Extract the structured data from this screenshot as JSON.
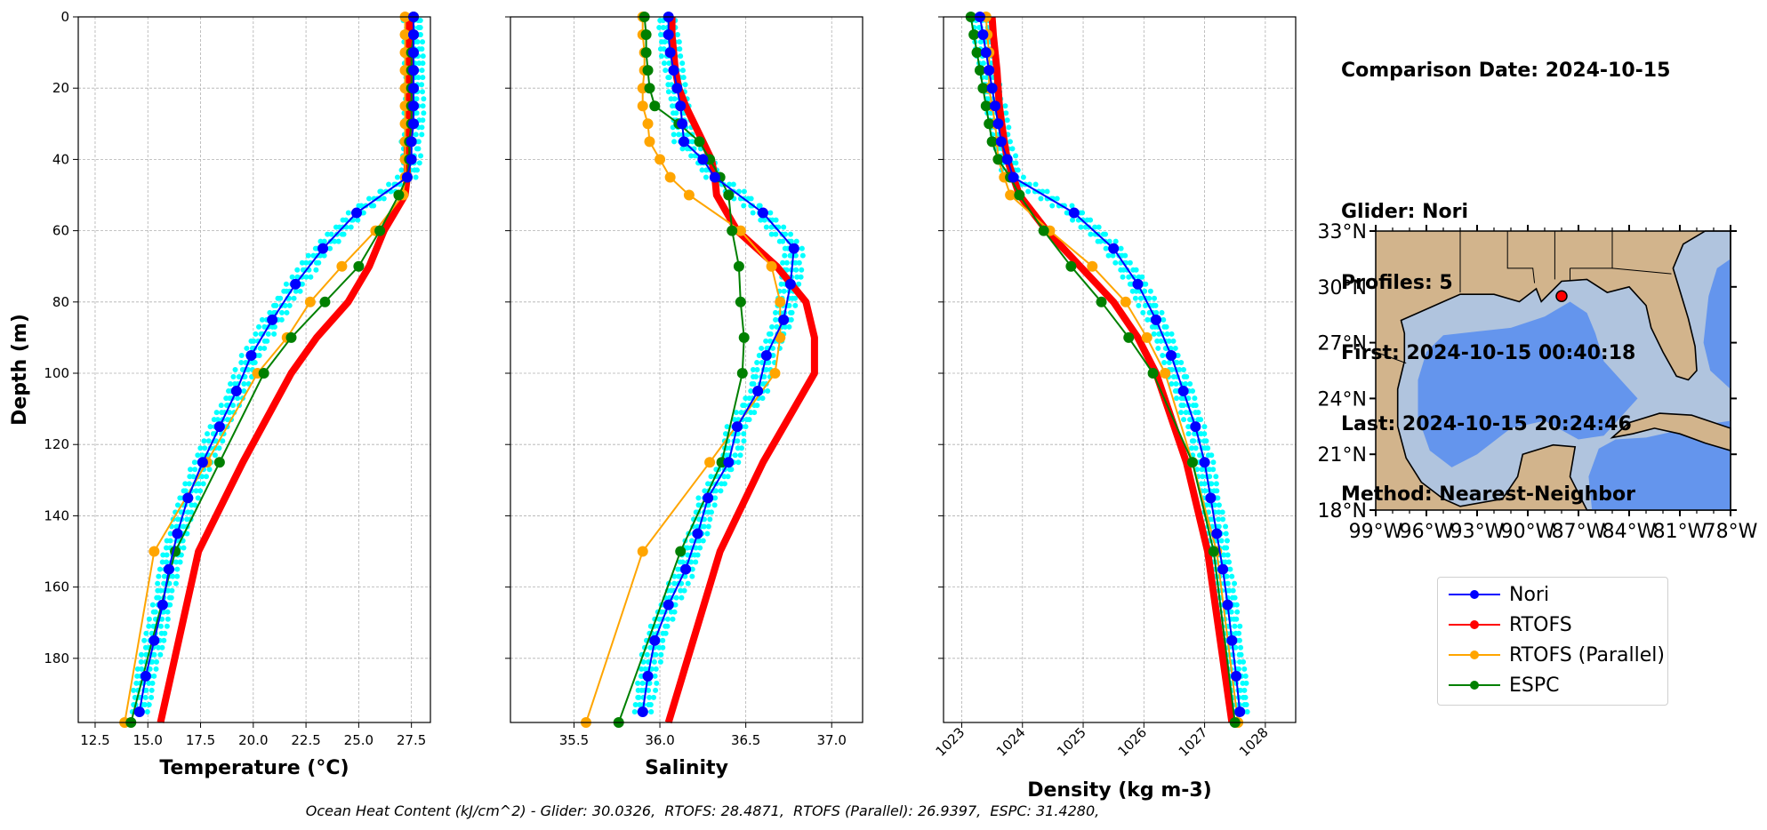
{
  "info": {
    "comparison": "Comparison Date: 2024-10-15",
    "glider": "Glider: Nori",
    "profiles": "Profiles: 5",
    "first": "First: 2024-10-15 00:40:18",
    "last": "Last: 2024-10-15 20:24:46",
    "method": "Method: Nearest-Neighbor"
  },
  "legend": [
    {
      "label": "Nori",
      "color": "#0000ff"
    },
    {
      "label": "RTOFS",
      "color": "#ff0000"
    },
    {
      "label": "RTOFS (Parallel)",
      "color": "#ffa500"
    },
    {
      "label": "ESPC",
      "color": "#008000"
    }
  ],
  "footer": "Ocean Heat Content (kJ/cm^2) - Glider: 30.0326,  RTOFS: 28.4871,  RTOFS (Parallel): 26.9397,  ESPC: 31.4280,",
  "map": {
    "lat_labels": [
      "33°N",
      "30°N",
      "27°N",
      "24°N",
      "21°N",
      "18°N"
    ],
    "lon_labels": [
      "99°W",
      "96°W",
      "93°W",
      "90°W",
      "87°W",
      "84°W",
      "81°W",
      "78°W"
    ],
    "glider_location": {
      "lon": -88.0,
      "lat": 29.5
    }
  },
  "chart_data": [
    {
      "type": "line",
      "xlabel": "Temperature (°C)",
      "ylabel": "Depth (m)",
      "xlim": [
        11.7,
        28.4
      ],
      "ylim": [
        198,
        0
      ],
      "xticks": [
        12.5,
        15.0,
        17.5,
        20.0,
        22.5,
        25.0,
        27.5
      ],
      "xtick_labels": [
        "12.5",
        "15.0",
        "17.5",
        "20.0",
        "22.5",
        "25.0",
        "27.5"
      ],
      "yticks": [
        0,
        20,
        40,
        60,
        80,
        100,
        120,
        140,
        160,
        180
      ],
      "ytick_labels": [
        "0",
        "20",
        "40",
        "60",
        "80",
        "100",
        "120",
        "140",
        "160",
        "180"
      ],
      "grid": true,
      "series": [
        {
          "name": "Nori",
          "color": "#0000ff",
          "depth": [
            0,
            5,
            10,
            15,
            20,
            25,
            30,
            35,
            40,
            45,
            55,
            65,
            75,
            85,
            95,
            105,
            115,
            125,
            135,
            145,
            155,
            165,
            175,
            185,
            195
          ],
          "values": [
            27.6,
            27.6,
            27.6,
            27.6,
            27.6,
            27.6,
            27.6,
            27.5,
            27.5,
            27.3,
            24.9,
            23.3,
            22.0,
            20.9,
            19.9,
            19.2,
            18.4,
            17.6,
            16.9,
            16.4,
            16.0,
            15.7,
            15.3,
            14.9,
            14.6
          ]
        },
        {
          "name": "RTOFS",
          "color": "#ff0000",
          "depth": [
            0,
            5,
            10,
            15,
            20,
            25,
            30,
            35,
            40,
            45,
            50,
            60,
            70,
            80,
            90,
            100,
            125,
            150,
            198
          ],
          "values": [
            27.4,
            27.4,
            27.4,
            27.4,
            27.4,
            27.4,
            27.4,
            27.3,
            27.3,
            27.3,
            27.2,
            26.2,
            25.5,
            24.5,
            23.0,
            21.8,
            19.5,
            17.4,
            15.6
          ]
        },
        {
          "name": "RTOFS (Parallel)",
          "color": "#ffa500",
          "depth": [
            0,
            5,
            10,
            15,
            20,
            25,
            30,
            35,
            40,
            45,
            50,
            60,
            70,
            80,
            90,
            100,
            125,
            150,
            198
          ],
          "values": [
            27.2,
            27.2,
            27.2,
            27.2,
            27.2,
            27.2,
            27.2,
            27.2,
            27.2,
            27.2,
            27.1,
            25.8,
            24.2,
            22.7,
            21.6,
            20.2,
            17.8,
            15.3,
            13.9
          ]
        },
        {
          "name": "ESPC",
          "color": "#008000",
          "depth": [
            0,
            5,
            10,
            15,
            20,
            25,
            30,
            35,
            40,
            45,
            50,
            60,
            70,
            80,
            90,
            100,
            125,
            150,
            198
          ],
          "values": [
            27.6,
            27.6,
            27.5,
            27.5,
            27.5,
            27.5,
            27.5,
            27.4,
            27.4,
            27.3,
            26.9,
            26.0,
            25.0,
            23.4,
            21.8,
            20.5,
            18.4,
            16.3,
            14.2
          ]
        }
      ]
    },
    {
      "type": "line",
      "xlabel": "Salinity",
      "xlim": [
        35.13,
        37.18
      ],
      "ylim": [
        198,
        0
      ],
      "xticks": [
        35.5,
        36.0,
        36.5,
        37.0
      ],
      "xtick_labels": [
        "35.5",
        "36.0",
        "36.5",
        "37.0"
      ],
      "grid": true,
      "series": [
        {
          "name": "Nori",
          "color": "#0000ff",
          "depth": [
            0,
            5,
            10,
            15,
            20,
            25,
            30,
            35,
            40,
            45,
            55,
            65,
            75,
            85,
            95,
            105,
            115,
            125,
            135,
            145,
            155,
            165,
            175,
            185,
            195
          ],
          "values": [
            36.05,
            36.05,
            36.06,
            36.08,
            36.1,
            36.12,
            36.13,
            36.14,
            36.25,
            36.32,
            36.6,
            36.78,
            36.76,
            36.72,
            36.62,
            36.57,
            36.45,
            36.4,
            36.28,
            36.22,
            36.15,
            36.05,
            35.97,
            35.93,
            35.9
          ]
        },
        {
          "name": "RTOFS",
          "color": "#ff0000",
          "depth": [
            0,
            5,
            10,
            15,
            20,
            25,
            30,
            35,
            40,
            45,
            50,
            60,
            70,
            80,
            90,
            100,
            125,
            150,
            198
          ],
          "values": [
            36.07,
            36.07,
            36.08,
            36.09,
            36.11,
            36.15,
            36.2,
            36.25,
            36.3,
            36.32,
            36.33,
            36.45,
            36.68,
            36.85,
            36.9,
            36.9,
            36.6,
            36.35,
            36.05
          ]
        },
        {
          "name": "RTOFS (Parallel)",
          "color": "#ffa500",
          "depth": [
            0,
            5,
            10,
            15,
            20,
            25,
            30,
            35,
            40,
            45,
            50,
            60,
            70,
            80,
            90,
            100,
            125,
            150,
            198
          ],
          "values": [
            35.9,
            35.9,
            35.91,
            35.91,
            35.9,
            35.9,
            35.93,
            35.94,
            36.0,
            36.06,
            36.17,
            36.47,
            36.65,
            36.7,
            36.7,
            36.67,
            36.29,
            35.9,
            35.57
          ]
        },
        {
          "name": "ESPC",
          "color": "#008000",
          "depth": [
            0,
            5,
            10,
            15,
            20,
            25,
            30,
            35,
            40,
            45,
            50,
            60,
            70,
            80,
            90,
            100,
            125,
            150,
            198
          ],
          "values": [
            35.91,
            35.92,
            35.92,
            35.93,
            35.94,
            35.97,
            36.11,
            36.23,
            36.29,
            36.35,
            36.4,
            36.42,
            36.46,
            36.47,
            36.49,
            36.48,
            36.36,
            36.12,
            35.76
          ]
        }
      ]
    },
    {
      "type": "line",
      "xlabel": "Density (kg m-3)",
      "xlim": [
        1022.7,
        1028.5
      ],
      "ylim": [
        198,
        0
      ],
      "xticks": [
        1023,
        1024,
        1025,
        1026,
        1027,
        1028
      ],
      "xtick_labels": [
        "1023",
        "1024",
        "1025",
        "1026",
        "1027",
        "1028"
      ],
      "grid": true,
      "series": [
        {
          "name": "Nori",
          "color": "#0000ff",
          "depth": [
            0,
            5,
            10,
            15,
            20,
            25,
            30,
            35,
            40,
            45,
            55,
            65,
            75,
            85,
            95,
            105,
            115,
            125,
            135,
            145,
            155,
            165,
            175,
            185,
            195
          ],
          "values": [
            1023.3,
            1023.35,
            1023.4,
            1023.45,
            1023.5,
            1023.55,
            1023.6,
            1023.65,
            1023.75,
            1023.85,
            1024.85,
            1025.5,
            1025.9,
            1026.2,
            1026.45,
            1026.65,
            1026.85,
            1027.0,
            1027.1,
            1027.2,
            1027.3,
            1027.38,
            1027.45,
            1027.52,
            1027.58
          ]
        },
        {
          "name": "RTOFS",
          "color": "#ff0000",
          "depth": [
            0,
            5,
            10,
            15,
            20,
            25,
            30,
            35,
            40,
            45,
            50,
            60,
            70,
            80,
            90,
            100,
            125,
            150,
            198
          ],
          "values": [
            1023.5,
            1023.52,
            1023.55,
            1023.58,
            1023.6,
            1023.62,
            1023.66,
            1023.7,
            1023.75,
            1023.85,
            1023.95,
            1024.4,
            1024.95,
            1025.5,
            1025.9,
            1026.2,
            1026.7,
            1027.05,
            1027.45
          ]
        },
        {
          "name": "RTOFS (Parallel)",
          "color": "#ffa500",
          "depth": [
            0,
            5,
            10,
            15,
            20,
            25,
            30,
            35,
            40,
            45,
            50,
            60,
            70,
            80,
            90,
            100,
            125,
            150,
            198
          ],
          "values": [
            1023.4,
            1023.42,
            1023.45,
            1023.45,
            1023.45,
            1023.5,
            1023.55,
            1023.58,
            1023.6,
            1023.7,
            1023.8,
            1024.45,
            1025.15,
            1025.7,
            1026.05,
            1026.35,
            1026.8,
            1027.2,
            1027.55
          ]
        },
        {
          "name": "ESPC",
          "color": "#008000",
          "depth": [
            0,
            5,
            10,
            15,
            20,
            25,
            30,
            35,
            40,
            45,
            50,
            60,
            70,
            80,
            90,
            100,
            125,
            150,
            198
          ],
          "values": [
            1023.15,
            1023.2,
            1023.25,
            1023.3,
            1023.35,
            1023.4,
            1023.45,
            1023.5,
            1023.6,
            1023.8,
            1023.95,
            1024.35,
            1024.8,
            1025.3,
            1025.75,
            1026.15,
            1026.8,
            1027.15,
            1027.5
          ]
        }
      ]
    }
  ]
}
